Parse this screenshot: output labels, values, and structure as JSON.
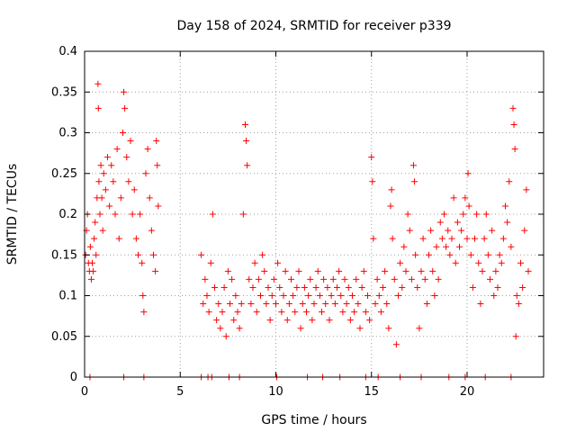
{
  "chart_data": {
    "type": "scatter",
    "title": "Day 158 of 2024, SRMTID for receiver p339",
    "xlabel": "GPS time / hours",
    "ylabel": "SRMTID / TECUs",
    "xlim": [
      0,
      24
    ],
    "ylim": [
      0,
      0.4
    ],
    "xticks": [
      0,
      5,
      10,
      15,
      20
    ],
    "xtick_labels": [
      "0",
      "5",
      "10",
      "15",
      "20"
    ],
    "yticks": [
      0,
      0.05,
      0.1,
      0.15,
      0.2,
      0.25,
      0.3,
      0.35,
      0.4
    ],
    "ytick_labels": [
      "0",
      "0.05",
      "0.1",
      "0.15",
      "0.2",
      "0.25",
      "0.3",
      "0.35",
      "0.4"
    ],
    "grid": true,
    "marker": "plus",
    "series": [
      {
        "name": "SRMTID",
        "color": "#ff0000",
        "points": [
          [
            0.05,
            0.15
          ],
          [
            0.1,
            0.18
          ],
          [
            0.15,
            0.2
          ],
          [
            0.2,
            0.14
          ],
          [
            0.25,
            0.13
          ],
          [
            0.3,
            0.16
          ],
          [
            0.35,
            0.12
          ],
          [
            0.4,
            0.14
          ],
          [
            0.45,
            0.13
          ],
          [
            0.5,
            0.17
          ],
          [
            0.55,
            0.19
          ],
          [
            0.6,
            0.15
          ],
          [
            0.65,
            0.22
          ],
          [
            0.7,
            0.36
          ],
          [
            0.72,
            0.33
          ],
          [
            0.75,
            0.24
          ],
          [
            0.8,
            0.2
          ],
          [
            0.85,
            0.26
          ],
          [
            0.9,
            0.22
          ],
          [
            0.95,
            0.18
          ],
          [
            1.0,
            0.25
          ],
          [
            1.1,
            0.23
          ],
          [
            1.2,
            0.27
          ],
          [
            1.3,
            0.21
          ],
          [
            1.4,
            0.26
          ],
          [
            1.5,
            0.24
          ],
          [
            1.6,
            0.2
          ],
          [
            1.7,
            0.28
          ],
          [
            1.8,
            0.17
          ],
          [
            1.9,
            0.22
          ],
          [
            2.0,
            0.3
          ],
          [
            2.05,
            0.35
          ],
          [
            2.1,
            0.33
          ],
          [
            2.2,
            0.27
          ],
          [
            2.3,
            0.24
          ],
          [
            2.4,
            0.29
          ],
          [
            2.5,
            0.2
          ],
          [
            2.6,
            0.23
          ],
          [
            2.7,
            0.17
          ],
          [
            2.8,
            0.15
          ],
          [
            2.9,
            0.2
          ],
          [
            3.0,
            0.14
          ],
          [
            3.05,
            0.1
          ],
          [
            3.1,
            0.08
          ],
          [
            3.2,
            0.25
          ],
          [
            3.3,
            0.28
          ],
          [
            3.4,
            0.22
          ],
          [
            3.5,
            0.18
          ],
          [
            3.6,
            0.15
          ],
          [
            3.7,
            0.13
          ],
          [
            3.75,
            0.29
          ],
          [
            3.8,
            0.26
          ],
          [
            3.85,
            0.21
          ],
          [
            6.1,
            0.15
          ],
          [
            6.2,
            0.09
          ],
          [
            6.3,
            0.12
          ],
          [
            6.4,
            0.1
          ],
          [
            6.5,
            0.08
          ],
          [
            6.6,
            0.14
          ],
          [
            6.7,
            0.2
          ],
          [
            6.8,
            0.11
          ],
          [
            6.9,
            0.07
          ],
          [
            7.0,
            0.09
          ],
          [
            7.1,
            0.06
          ],
          [
            7.2,
            0.08
          ],
          [
            7.3,
            0.11
          ],
          [
            7.4,
            0.05
          ],
          [
            7.5,
            0.13
          ],
          [
            7.6,
            0.09
          ],
          [
            7.7,
            0.12
          ],
          [
            7.8,
            0.07
          ],
          [
            7.9,
            0.1
          ],
          [
            8.0,
            0.08
          ],
          [
            8.1,
            0.06
          ],
          [
            8.2,
            0.09
          ],
          [
            8.3,
            0.2
          ],
          [
            8.4,
            0.31
          ],
          [
            8.45,
            0.29
          ],
          [
            8.5,
            0.26
          ],
          [
            8.6,
            0.12
          ],
          [
            8.7,
            0.09
          ],
          [
            8.8,
            0.11
          ],
          [
            8.9,
            0.14
          ],
          [
            9.0,
            0.08
          ],
          [
            9.1,
            0.12
          ],
          [
            9.2,
            0.1
          ],
          [
            9.3,
            0.15
          ],
          [
            9.4,
            0.13
          ],
          [
            9.5,
            0.09
          ],
          [
            9.6,
            0.11
          ],
          [
            9.7,
            0.07
          ],
          [
            9.8,
            0.1
          ],
          [
            9.9,
            0.12
          ],
          [
            10.0,
            0.09
          ],
          [
            10.1,
            0.14
          ],
          [
            10.2,
            0.11
          ],
          [
            10.3,
            0.08
          ],
          [
            10.4,
            0.1
          ],
          [
            10.5,
            0.13
          ],
          [
            10.6,
            0.07
          ],
          [
            10.7,
            0.09
          ],
          [
            10.8,
            0.12
          ],
          [
            10.9,
            0.1
          ],
          [
            11.0,
            0.08
          ],
          [
            11.1,
            0.11
          ],
          [
            11.2,
            0.13
          ],
          [
            11.3,
            0.06
          ],
          [
            11.4,
            0.09
          ],
          [
            11.5,
            0.11
          ],
          [
            11.6,
            0.08
          ],
          [
            11.7,
            0.1
          ],
          [
            11.8,
            0.12
          ],
          [
            11.9,
            0.07
          ],
          [
            12.0,
            0.09
          ],
          [
            12.1,
            0.11
          ],
          [
            12.2,
            0.13
          ],
          [
            12.3,
            0.1
          ],
          [
            12.4,
            0.08
          ],
          [
            12.5,
            0.12
          ],
          [
            12.6,
            0.09
          ],
          [
            12.7,
            0.11
          ],
          [
            12.8,
            0.07
          ],
          [
            12.9,
            0.1
          ],
          [
            13.0,
            0.12
          ],
          [
            13.1,
            0.09
          ],
          [
            13.2,
            0.11
          ],
          [
            13.3,
            0.13
          ],
          [
            13.4,
            0.1
          ],
          [
            13.5,
            0.08
          ],
          [
            13.6,
            0.12
          ],
          [
            13.7,
            0.09
          ],
          [
            13.8,
            0.11
          ],
          [
            13.9,
            0.07
          ],
          [
            14.0,
            0.1
          ],
          [
            14.1,
            0.08
          ],
          [
            14.2,
            0.12
          ],
          [
            14.3,
            0.09
          ],
          [
            14.4,
            0.06
          ],
          [
            14.5,
            0.11
          ],
          [
            14.6,
            0.13
          ],
          [
            14.7,
            0.08
          ],
          [
            14.8,
            0.1
          ],
          [
            14.9,
            0.07
          ],
          [
            15.0,
            0.27
          ],
          [
            15.05,
            0.24
          ],
          [
            15.1,
            0.17
          ],
          [
            15.2,
            0.09
          ],
          [
            15.3,
            0.12
          ],
          [
            15.4,
            0.1
          ],
          [
            15.5,
            0.08
          ],
          [
            15.6,
            0.11
          ],
          [
            15.7,
            0.13
          ],
          [
            15.8,
            0.09
          ],
          [
            15.9,
            0.06
          ],
          [
            16.0,
            0.21
          ],
          [
            16.05,
            0.23
          ],
          [
            16.1,
            0.17
          ],
          [
            16.2,
            0.12
          ],
          [
            16.3,
            0.04
          ],
          [
            16.4,
            0.1
          ],
          [
            16.5,
            0.14
          ],
          [
            16.6,
            0.11
          ],
          [
            16.7,
            0.16
          ],
          [
            16.8,
            0.13
          ],
          [
            16.9,
            0.2
          ],
          [
            17.0,
            0.18
          ],
          [
            17.1,
            0.12
          ],
          [
            17.2,
            0.26
          ],
          [
            17.25,
            0.24
          ],
          [
            17.3,
            0.15
          ],
          [
            17.4,
            0.11
          ],
          [
            17.5,
            0.06
          ],
          [
            17.6,
            0.13
          ],
          [
            17.7,
            0.17
          ],
          [
            17.8,
            0.12
          ],
          [
            17.9,
            0.09
          ],
          [
            18.0,
            0.15
          ],
          [
            18.1,
            0.18
          ],
          [
            18.2,
            0.13
          ],
          [
            18.3,
            0.1
          ],
          [
            18.4,
            0.16
          ],
          [
            18.5,
            0.12
          ],
          [
            18.6,
            0.19
          ],
          [
            18.7,
            0.17
          ],
          [
            18.8,
            0.2
          ],
          [
            18.9,
            0.16
          ],
          [
            19.0,
            0.18
          ],
          [
            19.1,
            0.15
          ],
          [
            19.2,
            0.17
          ],
          [
            19.3,
            0.22
          ],
          [
            19.4,
            0.14
          ],
          [
            19.5,
            0.19
          ],
          [
            19.6,
            0.16
          ],
          [
            19.7,
            0.18
          ],
          [
            19.8,
            0.2
          ],
          [
            19.9,
            0.22
          ],
          [
            20.0,
            0.17
          ],
          [
            20.05,
            0.25
          ],
          [
            20.1,
            0.21
          ],
          [
            20.2,
            0.15
          ],
          [
            20.3,
            0.11
          ],
          [
            20.4,
            0.17
          ],
          [
            20.5,
            0.2
          ],
          [
            20.6,
            0.14
          ],
          [
            20.7,
            0.09
          ],
          [
            20.8,
            0.13
          ],
          [
            20.9,
            0.17
          ],
          [
            21.0,
            0.2
          ],
          [
            21.1,
            0.15
          ],
          [
            21.2,
            0.12
          ],
          [
            21.3,
            0.18
          ],
          [
            21.4,
            0.1
          ],
          [
            21.5,
            0.13
          ],
          [
            21.6,
            0.11
          ],
          [
            21.7,
            0.15
          ],
          [
            21.8,
            0.14
          ],
          [
            21.9,
            0.17
          ],
          [
            22.0,
            0.21
          ],
          [
            22.1,
            0.19
          ],
          [
            22.2,
            0.24
          ],
          [
            22.3,
            0.16
          ],
          [
            22.4,
            0.33
          ],
          [
            22.45,
            0.31
          ],
          [
            22.5,
            0.28
          ],
          [
            22.55,
            0.05
          ],
          [
            22.6,
            0.1
          ],
          [
            22.7,
            0.09
          ],
          [
            22.8,
            0.14
          ],
          [
            22.9,
            0.11
          ],
          [
            23.0,
            0.18
          ],
          [
            23.1,
            0.23
          ],
          [
            23.2,
            0.13
          ],
          [
            0.28,
            0.0
          ],
          [
            2.05,
            0.0
          ],
          [
            3.1,
            0.0
          ],
          [
            6.1,
            0.0
          ],
          [
            6.45,
            0.0
          ],
          [
            6.65,
            0.0
          ],
          [
            7.55,
            0.0
          ],
          [
            8.1,
            0.0
          ],
          [
            10.05,
            0.0
          ],
          [
            11.65,
            0.0
          ],
          [
            12.45,
            0.0
          ],
          [
            13.35,
            0.0
          ],
          [
            14.7,
            0.0
          ],
          [
            15.35,
            0.0
          ],
          [
            16.5,
            0.0
          ],
          [
            17.6,
            0.0
          ],
          [
            19.05,
            0.0
          ],
          [
            19.9,
            0.0
          ],
          [
            20.95,
            0.0
          ],
          [
            22.3,
            0.0
          ]
        ]
      }
    ]
  }
}
